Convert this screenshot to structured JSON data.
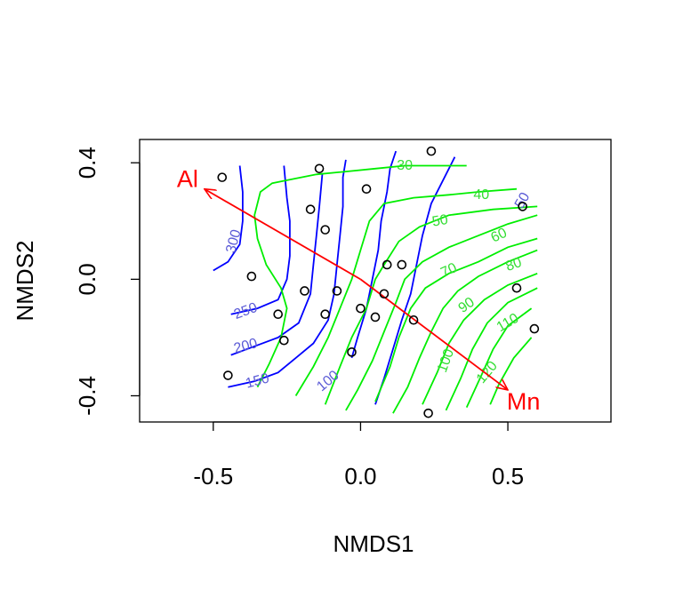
{
  "chart_data": {
    "type": "scatter",
    "title": "",
    "xlabel": "NMDS1",
    "ylabel": "NMDS2",
    "xlim": [
      -0.75,
      0.85
    ],
    "ylim": [
      -0.49,
      0.48
    ],
    "xticks": [
      -0.5,
      0.0,
      0.5
    ],
    "xtick_labels": [
      "-0.5",
      "0.0",
      "0.5"
    ],
    "yticks": [
      -0.4,
      0.0,
      0.4
    ],
    "ytick_labels": [
      "-0.4",
      "0.0",
      "0.4"
    ],
    "grid": false,
    "legend": "none",
    "points": {
      "marker": "open-circle",
      "color": "#000000",
      "x": [
        0.24,
        -0.14,
        -0.47,
        0.02,
        -0.17,
        0.55,
        -0.12,
        -0.37,
        0.09,
        0.14,
        -0.19,
        -0.08,
        0.08,
        -0.28,
        -0.12,
        0.0,
        0.05,
        0.53,
        0.18,
        0.59,
        -0.26,
        -0.03,
        -0.45,
        0.23
      ],
      "y": [
        0.44,
        0.38,
        0.35,
        0.31,
        0.24,
        0.25,
        0.17,
        0.01,
        0.05,
        0.05,
        -0.04,
        -0.04,
        -0.05,
        -0.12,
        -0.12,
        -0.1,
        -0.13,
        -0.03,
        -0.14,
        -0.17,
        -0.21,
        -0.25,
        -0.33,
        -0.46
      ]
    },
    "vectors": [
      {
        "label": "Al",
        "color": "#ff0000",
        "from": [
          0.0,
          0.0
        ],
        "to": [
          -0.53,
          0.31
        ]
      },
      {
        "label": "Mn",
        "color": "#ff0000",
        "from": [
          0.0,
          0.0
        ],
        "to": [
          0.5,
          -0.38
        ]
      }
    ],
    "contours": [
      {
        "variable": "Al",
        "color": "#0000ff",
        "label_color": "#5b5bd6",
        "levels": [
          {
            "level": "300",
            "path": [
              [
                -0.5,
                0.03
              ],
              [
                -0.45,
                0.06
              ],
              [
                -0.41,
                0.12
              ],
              [
                -0.4,
                0.2
              ],
              [
                -0.4,
                0.3
              ],
              [
                -0.41,
                0.39
              ]
            ]
          },
          {
            "level": "250",
            "path": [
              [
                -0.44,
                -0.12
              ],
              [
                -0.35,
                -0.1
              ],
              [
                -0.28,
                -0.07
              ],
              [
                -0.25,
                0.0
              ],
              [
                -0.24,
                0.08
              ],
              [
                -0.24,
                0.2
              ],
              [
                -0.25,
                0.28
              ],
              [
                -0.26,
                0.39
              ]
            ]
          },
          {
            "level": "200",
            "path": [
              [
                -0.44,
                -0.26
              ],
              [
                -0.36,
                -0.23
              ],
              [
                -0.28,
                -0.2
              ],
              [
                -0.21,
                -0.15
              ],
              [
                -0.17,
                -0.05
              ],
              [
                -0.16,
                0.05
              ],
              [
                -0.15,
                0.15
              ],
              [
                -0.14,
                0.25
              ],
              [
                -0.13,
                0.36
              ]
            ]
          },
          {
            "level": "150",
            "path": [
              [
                -0.45,
                -0.37
              ],
              [
                -0.36,
                -0.35
              ],
              [
                -0.28,
                -0.32
              ],
              [
                -0.22,
                -0.27
              ],
              [
                -0.16,
                -0.22
              ],
              [
                -0.11,
                -0.14
              ],
              [
                -0.09,
                -0.05
              ],
              [
                -0.08,
                0.05
              ],
              [
                -0.07,
                0.15
              ],
              [
                -0.06,
                0.25
              ],
              [
                -0.06,
                0.35
              ],
              [
                -0.05,
                0.41
              ]
            ]
          },
          {
            "level": "100",
            "path": [
              [
                -0.03,
                -0.27
              ],
              [
                -0.01,
                -0.2
              ],
              [
                0.02,
                -0.1
              ],
              [
                0.04,
                0.0
              ],
              [
                0.06,
                0.1
              ],
              [
                0.07,
                0.2
              ],
              [
                0.09,
                0.3
              ],
              [
                0.1,
                0.38
              ],
              [
                0.12,
                0.44
              ]
            ]
          },
          {
            "level": "",
            "path": [
              [
                0.05,
                -0.43
              ],
              [
                0.08,
                -0.34
              ],
              [
                0.11,
                -0.24
              ],
              [
                0.14,
                -0.14
              ],
              [
                0.17,
                -0.05
              ],
              [
                0.19,
                0.05
              ],
              [
                0.21,
                0.15
              ],
              [
                0.24,
                0.26
              ],
              [
                0.29,
                0.36
              ],
              [
                0.32,
                0.42
              ]
            ]
          }
        ],
        "labels": [
          {
            "text": "300",
            "x": -0.43,
            "y": 0.13,
            "angle": -75
          },
          {
            "text": "250",
            "x": -0.39,
            "y": -0.11,
            "angle": -20
          },
          {
            "text": "200",
            "x": -0.39,
            "y": -0.23,
            "angle": -15
          },
          {
            "text": "150",
            "x": -0.35,
            "y": -0.35,
            "angle": -15
          },
          {
            "text": "100",
            "x": -0.11,
            "y": -0.35,
            "angle": -40
          },
          {
            "text": "50",
            "x": 0.55,
            "y": 0.27,
            "angle": -60
          }
        ]
      },
      {
        "variable": "Mn",
        "color": "#00ee00",
        "label_color": "#33dd33",
        "levels": [
          {
            "level": "30",
            "path": [
              [
                0.36,
                0.39
              ],
              [
                0.26,
                0.39
              ],
              [
                0.15,
                0.39
              ],
              [
                0.05,
                0.38
              ],
              [
                -0.05,
                0.37
              ],
              [
                -0.15,
                0.36
              ],
              [
                -0.25,
                0.34
              ],
              [
                -0.3,
                0.33
              ],
              [
                -0.34,
                0.3
              ],
              [
                -0.36,
                0.22
              ],
              [
                -0.35,
                0.14
              ],
              [
                -0.32,
                0.05
              ],
              [
                -0.27,
                -0.03
              ],
              [
                -0.25,
                -0.1
              ],
              [
                -0.27,
                -0.2
              ],
              [
                -0.31,
                -0.29
              ],
              [
                -0.35,
                -0.37
              ]
            ]
          },
          {
            "level": "40",
            "path": [
              [
                0.53,
                0.31
              ],
              [
                0.4,
                0.3
              ],
              [
                0.3,
                0.29
              ],
              [
                0.18,
                0.28
              ],
              [
                0.08,
                0.26
              ],
              [
                0.03,
                0.2
              ],
              [
                0.0,
                0.1
              ],
              [
                -0.03,
                0.0
              ],
              [
                -0.07,
                -0.1
              ],
              [
                -0.11,
                -0.2
              ],
              [
                -0.16,
                -0.3
              ],
              [
                -0.22,
                -0.4
              ]
            ]
          },
          {
            "level": "50",
            "path": [
              [
                0.6,
                0.25
              ],
              [
                0.45,
                0.24
              ],
              [
                0.3,
                0.22
              ],
              [
                0.2,
                0.18
              ],
              [
                0.13,
                0.13
              ],
              [
                0.08,
                0.05
              ],
              [
                0.05,
                0.0
              ],
              [
                0.02,
                -0.1
              ],
              [
                -0.03,
                -0.2
              ],
              [
                -0.07,
                -0.3
              ],
              [
                -0.12,
                -0.43
              ]
            ]
          },
          {
            "level": "60",
            "path": [
              [
                0.6,
                0.22
              ],
              [
                0.5,
                0.19
              ],
              [
                0.4,
                0.15
              ],
              [
                0.3,
                0.11
              ],
              [
                0.21,
                0.06
              ],
              [
                0.15,
                0.0
              ],
              [
                0.12,
                -0.08
              ],
              [
                0.08,
                -0.18
              ],
              [
                0.04,
                -0.28
              ],
              [
                -0.01,
                -0.38
              ],
              [
                -0.05,
                -0.45
              ]
            ]
          },
          {
            "level": "70",
            "path": [
              [
                0.6,
                0.14
              ],
              [
                0.5,
                0.11
              ],
              [
                0.4,
                0.06
              ],
              [
                0.3,
                0.02
              ],
              [
                0.22,
                -0.03
              ],
              [
                0.17,
                -0.1
              ],
              [
                0.13,
                -0.2
              ],
              [
                0.1,
                -0.3
              ],
              [
                0.05,
                -0.42
              ]
            ]
          },
          {
            "level": "80",
            "path": [
              [
                0.6,
                0.1
              ],
              [
                0.5,
                0.06
              ],
              [
                0.4,
                0.01
              ],
              [
                0.33,
                -0.04
              ],
              [
                0.28,
                -0.1
              ],
              [
                0.24,
                -0.18
              ],
              [
                0.2,
                -0.27
              ],
              [
                0.16,
                -0.37
              ],
              [
                0.11,
                -0.46
              ]
            ]
          },
          {
            "level": "90",
            "path": [
              [
                0.6,
                0.02
              ],
              [
                0.5,
                -0.02
              ],
              [
                0.42,
                -0.07
              ],
              [
                0.35,
                -0.14
              ],
              [
                0.3,
                -0.22
              ],
              [
                0.26,
                -0.32
              ],
              [
                0.21,
                -0.43
              ]
            ]
          },
          {
            "level": "100",
            "path": [
              [
                0.6,
                -0.03
              ],
              [
                0.5,
                -0.08
              ],
              [
                0.43,
                -0.15
              ],
              [
                0.38,
                -0.24
              ],
              [
                0.34,
                -0.34
              ],
              [
                0.29,
                -0.45
              ]
            ]
          },
          {
            "level": "110",
            "path": [
              [
                0.58,
                -0.1
              ],
              [
                0.5,
                -0.16
              ],
              [
                0.45,
                -0.24
              ],
              [
                0.41,
                -0.33
              ],
              [
                0.36,
                -0.44
              ]
            ]
          },
          {
            "level": "120",
            "path": [
              [
                0.58,
                -0.2
              ],
              [
                0.52,
                -0.27
              ],
              [
                0.47,
                -0.36
              ],
              [
                0.44,
                -0.43
              ]
            ]
          }
        ],
        "labels": [
          {
            "text": "30",
            "x": 0.15,
            "y": 0.39,
            "angle": 0
          },
          {
            "text": "40",
            "x": 0.41,
            "y": 0.29,
            "angle": 0
          },
          {
            "text": "50",
            "x": 0.27,
            "y": 0.2,
            "angle": -10
          },
          {
            "text": "60",
            "x": 0.47,
            "y": 0.15,
            "angle": -25
          },
          {
            "text": "70",
            "x": 0.3,
            "y": 0.03,
            "angle": -25
          },
          {
            "text": "80",
            "x": 0.52,
            "y": 0.05,
            "angle": -20
          },
          {
            "text": "90",
            "x": 0.36,
            "y": -0.09,
            "angle": -35
          },
          {
            "text": "100",
            "x": 0.29,
            "y": -0.28,
            "angle": -70
          },
          {
            "text": "110",
            "x": 0.5,
            "y": -0.15,
            "angle": -30
          },
          {
            "text": "120",
            "x": 0.43,
            "y": -0.32,
            "angle": -50
          }
        ]
      }
    ]
  }
}
